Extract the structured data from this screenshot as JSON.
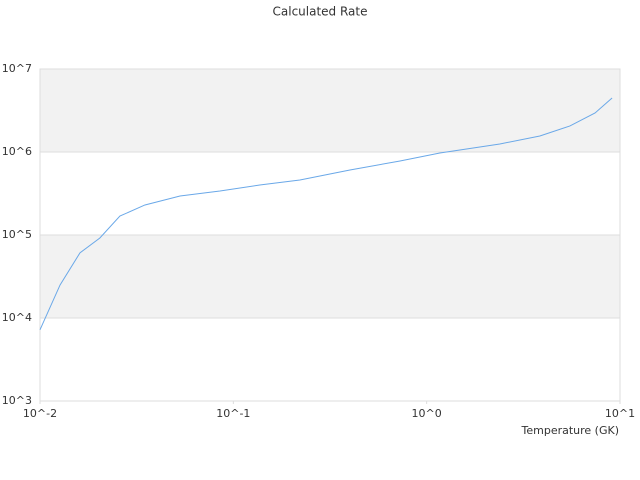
{
  "chart_data": {
    "type": "line",
    "title": "Calculated Rate",
    "x_label": "Temperature (GK)",
    "log_x": true,
    "log_y": true,
    "bands": true,
    "band_color": "#f2f2f2",
    "xlim": [
      0.01,
      10
    ],
    "ylim": [
      1000,
      10000000
    ],
    "xticks": [
      {
        "value": 0.01,
        "label": "10^-2"
      },
      {
        "value": 0.1,
        "label": "10^-1"
      },
      {
        "value": 1,
        "label": "10^0"
      },
      {
        "value": 10,
        "label": "10^1"
      }
    ],
    "yticks": [
      {
        "value": 1000,
        "label": "10^3"
      },
      {
        "value": 10000,
        "label": "10^4"
      },
      {
        "value": 100000,
        "label": "10^5"
      },
      {
        "value": 1000000,
        "label": "10^6"
      },
      {
        "value": 10000000,
        "label": "10^7"
      }
    ],
    "x": [
      0.01,
      0.0127,
      0.0161,
      0.0204,
      0.0259,
      0.0349,
      0.053,
      0.0853,
      0.137,
      0.221,
      0.401,
      0.728,
      1.17,
      2.39,
      3.85,
      5.51,
      7.43,
      9.1
    ],
    "series": [
      {
        "color": "#6aa8e8",
        "values": [
          7200,
          25000,
          61000,
          92000,
          169000,
          230000,
          295000,
          339000,
          400000,
          460000,
          607000,
          780000,
          972000,
          1250000,
          1560000,
          2060000,
          2950000,
          4480000
        ]
      }
    ]
  }
}
